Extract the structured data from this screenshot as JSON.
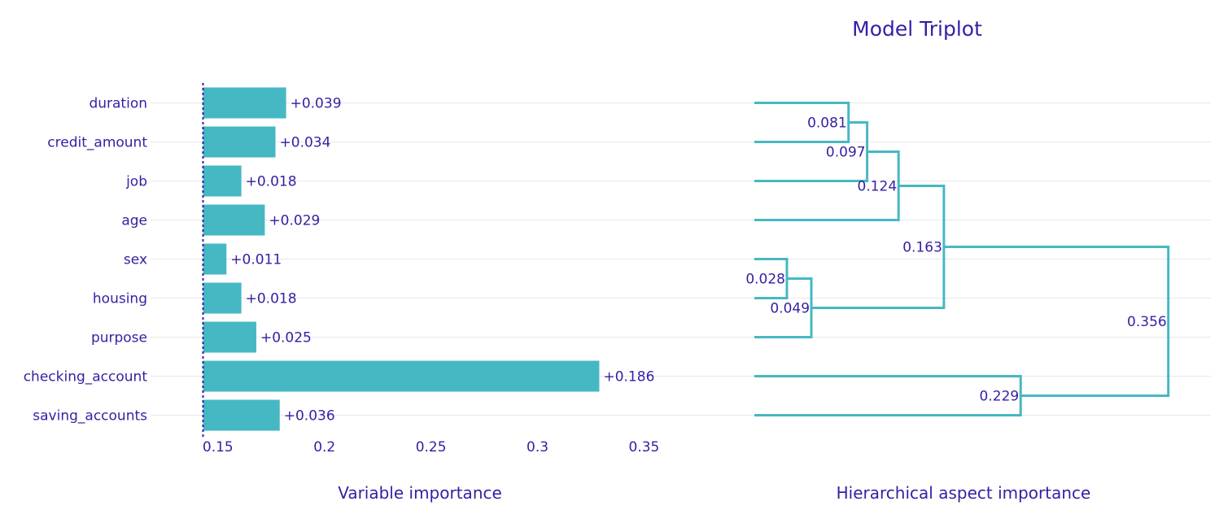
{
  "colors": {
    "bar": "#46b8c3",
    "text": "#371ea3",
    "grid": "#e8e8e8",
    "baseline": "#371ea3",
    "dendrogram": "#46b8c3"
  },
  "chart_data": {
    "title": "Model Triplot",
    "panels": [
      {
        "type": "bar",
        "orientation": "horizontal",
        "xlabel": "Variable importance",
        "baseline": 0.143,
        "xlim": [
          0.143,
          0.38
        ],
        "xticks": [
          0.15,
          0.2,
          0.25,
          0.3,
          0.35
        ],
        "xtick_labels": [
          "0.15",
          "0.2",
          "0.25",
          "0.3",
          "0.35"
        ],
        "categories": [
          "duration",
          "credit_amount",
          "job",
          "age",
          "sex",
          "housing",
          "purpose",
          "checking_account",
          "saving_accounts"
        ],
        "values": [
          0.182,
          0.177,
          0.161,
          0.172,
          0.154,
          0.161,
          0.168,
          0.329,
          0.179
        ],
        "data_labels": [
          "+0.039",
          "+0.034",
          "+0.018",
          "+0.029",
          "+0.011",
          "+0.018",
          "+0.025",
          "+0.186",
          "+0.036"
        ],
        "grid": true
      },
      {
        "type": "dendrogram",
        "xlabel": "Hierarchical aspect importance",
        "xlim": [
          0,
          0.38
        ],
        "leaves": [
          "duration",
          "credit_amount",
          "job",
          "age",
          "sex",
          "housing",
          "purpose",
          "checking_account",
          "saving_accounts"
        ],
        "merges": [
          {
            "left": "L0",
            "right": "L1",
            "height": 0.081,
            "label": "0.081"
          },
          {
            "left": "M0",
            "right": "L2",
            "height": 0.097,
            "label": "0.097"
          },
          {
            "left": "M1",
            "right": "L3",
            "height": 0.124,
            "label": "0.124"
          },
          {
            "left": "L4",
            "right": "L5",
            "height": 0.028,
            "label": "0.028"
          },
          {
            "left": "M3",
            "right": "L6",
            "height": 0.049,
            "label": "0.049"
          },
          {
            "left": "M2",
            "right": "M4",
            "height": 0.163,
            "label": "0.163"
          },
          {
            "left": "L7",
            "right": "L8",
            "height": 0.229,
            "label": "0.229"
          },
          {
            "left": "M5",
            "right": "M6",
            "height": 0.356,
            "label": "0.356"
          }
        ]
      }
    ]
  }
}
